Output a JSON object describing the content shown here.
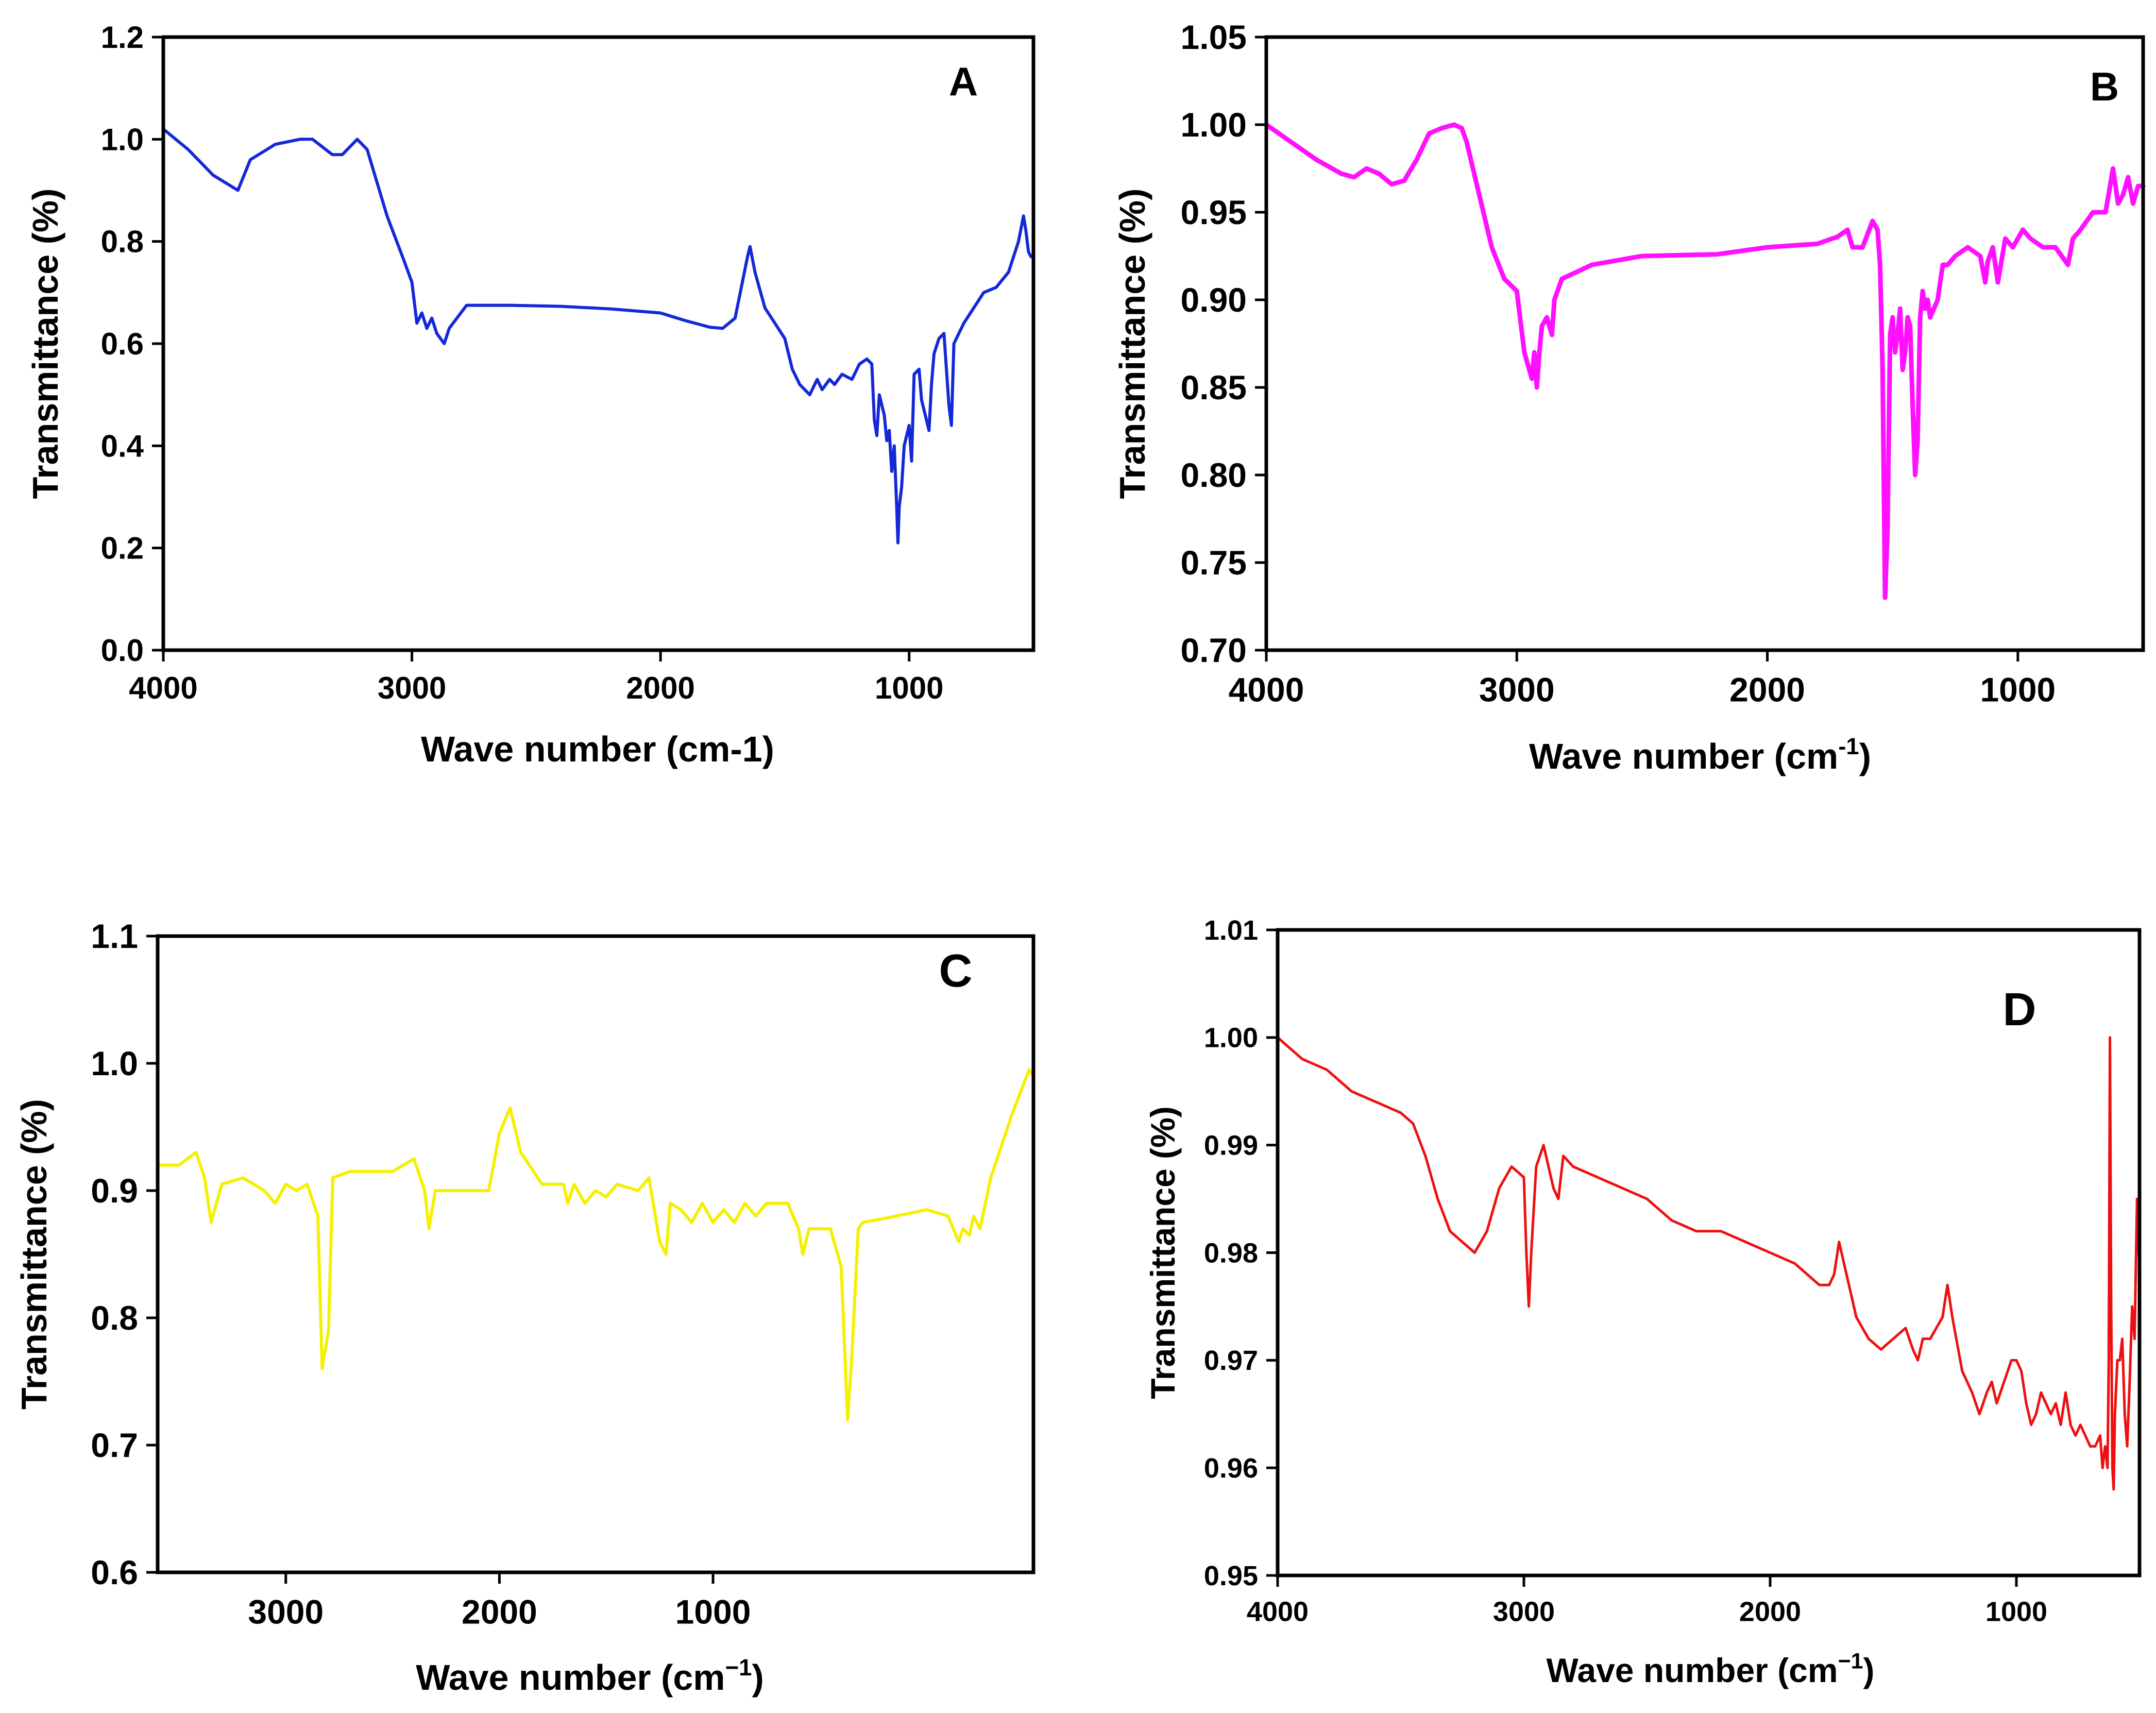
{
  "figure": {
    "panel_count": 4
  },
  "chart_data": [
    {
      "id": "A",
      "type": "line",
      "panel_label": "A",
      "xlabel": "Wave number (cm-1)",
      "ylabel": "Transmittance (%)",
      "xlim": [
        4000,
        500
      ],
      "ylim": [
        0.0,
        1.2
      ],
      "xticks": [
        4000,
        3000,
        2000,
        1000
      ],
      "yticks": [
        0.0,
        0.2,
        0.4,
        0.6,
        0.8,
        1.0,
        1.2
      ],
      "ytick_labels": [
        "0.0",
        "0.2",
        "0.4",
        "0.6",
        "0.8",
        "1.0",
        "1.2"
      ],
      "color": "#1428d8",
      "series": [
        {
          "name": "A",
          "x": [
            4000,
            3900,
            3800,
            3700,
            3650,
            3550,
            3450,
            3400,
            3320,
            3280,
            3220,
            3180,
            3100,
            3030,
            3000,
            2980,
            2960,
            2940,
            2920,
            2900,
            2870,
            2850,
            2780,
            2600,
            2400,
            2200,
            2000,
            1900,
            1800,
            1750,
            1700,
            1650,
            1640,
            1620,
            1580,
            1540,
            1500,
            1470,
            1440,
            1400,
            1370,
            1350,
            1320,
            1300,
            1270,
            1230,
            1200,
            1170,
            1150,
            1140,
            1130,
            1120,
            1100,
            1090,
            1080,
            1070,
            1060,
            1050,
            1045,
            1040,
            1030,
            1020,
            1000,
            990,
            980,
            960,
            950,
            930,
            920,
            910,
            900,
            880,
            860,
            840,
            830,
            820,
            800,
            780,
            700,
            650,
            600,
            560,
            540,
            530,
            520,
            510
          ],
          "y": [
            1.02,
            0.98,
            0.93,
            0.9,
            0.96,
            0.99,
            1.0,
            1.0,
            0.97,
            0.97,
            1.0,
            0.98,
            0.85,
            0.76,
            0.72,
            0.64,
            0.66,
            0.63,
            0.65,
            0.62,
            0.6,
            0.63,
            0.675,
            0.675,
            0.673,
            0.668,
            0.66,
            0.645,
            0.632,
            0.63,
            0.65,
            0.77,
            0.79,
            0.74,
            0.67,
            0.64,
            0.61,
            0.55,
            0.52,
            0.5,
            0.53,
            0.51,
            0.53,
            0.52,
            0.54,
            0.53,
            0.56,
            0.57,
            0.56,
            0.45,
            0.42,
            0.5,
            0.46,
            0.41,
            0.43,
            0.35,
            0.4,
            0.28,
            0.21,
            0.28,
            0.32,
            0.4,
            0.44,
            0.37,
            0.54,
            0.55,
            0.49,
            0.45,
            0.43,
            0.52,
            0.58,
            0.61,
            0.62,
            0.48,
            0.44,
            0.6,
            0.62,
            0.64,
            0.7,
            0.71,
            0.74,
            0.8,
            0.85,
            0.82,
            0.78,
            0.77
          ]
        }
      ]
    },
    {
      "id": "B",
      "type": "line",
      "panel_label": "B",
      "xlabel": "Wave number (cm",
      "xlabel_sup": "-1",
      "xlabel_close": ")",
      "ylabel": "Transmittance (%)",
      "xlim": [
        4000,
        500
      ],
      "ylim": [
        0.7,
        1.05
      ],
      "xticks": [
        4000,
        3000,
        2000,
        1000
      ],
      "yticks": [
        0.7,
        0.75,
        0.8,
        0.85,
        0.9,
        0.95,
        1.0,
        1.05
      ],
      "ytick_labels": [
        "0.70",
        "0.75",
        "0.80",
        "0.85",
        "0.90",
        "0.95",
        "1.00",
        "1.05"
      ],
      "color": "#ff10ff",
      "series": [
        {
          "name": "B",
          "x": [
            4000,
            3900,
            3800,
            3700,
            3650,
            3600,
            3550,
            3500,
            3450,
            3400,
            3350,
            3300,
            3250,
            3220,
            3200,
            3150,
            3100,
            3050,
            3000,
            2970,
            2950,
            2940,
            2930,
            2920,
            2910,
            2900,
            2880,
            2860,
            2850,
            2820,
            2700,
            2500,
            2200,
            2000,
            1800,
            1720,
            1680,
            1660,
            1620,
            1580,
            1560,
            1550,
            1540,
            1530,
            1520,
            1510,
            1500,
            1490,
            1480,
            1470,
            1460,
            1450,
            1440,
            1430,
            1420,
            1410,
            1400,
            1390,
            1380,
            1370,
            1360,
            1350,
            1320,
            1300,
            1280,
            1250,
            1200,
            1150,
            1130,
            1120,
            1100,
            1080,
            1050,
            1020,
            1000,
            980,
            950,
            900,
            850,
            800,
            780,
            750,
            700,
            650,
            620,
            600,
            580,
            560,
            540,
            520,
            500
          ],
          "y": [
            1.0,
            0.99,
            0.98,
            0.972,
            0.97,
            0.975,
            0.972,
            0.966,
            0.968,
            0.98,
            0.995,
            0.998,
            1.0,
            0.998,
            0.99,
            0.96,
            0.93,
            0.912,
            0.905,
            0.87,
            0.86,
            0.855,
            0.87,
            0.85,
            0.87,
            0.885,
            0.89,
            0.88,
            0.9,
            0.912,
            0.92,
            0.925,
            0.926,
            0.93,
            0.932,
            0.936,
            0.94,
            0.93,
            0.93,
            0.945,
            0.94,
            0.92,
            0.86,
            0.73,
            0.77,
            0.88,
            0.89,
            0.87,
            0.88,
            0.895,
            0.86,
            0.87,
            0.89,
            0.885,
            0.84,
            0.8,
            0.82,
            0.89,
            0.905,
            0.895,
            0.9,
            0.89,
            0.9,
            0.92,
            0.92,
            0.925,
            0.93,
            0.925,
            0.91,
            0.922,
            0.93,
            0.91,
            0.935,
            0.93,
            0.935,
            0.94,
            0.935,
            0.93,
            0.93,
            0.92,
            0.935,
            0.94,
            0.95,
            0.95,
            0.975,
            0.955,
            0.96,
            0.97,
            0.955,
            0.965,
            0.965
          ]
        }
      ]
    },
    {
      "id": "C",
      "type": "line",
      "panel_label": "C",
      "xlabel": "Wave number (cm",
      "xlabel_sup": "−1",
      "xlabel_close": ")",
      "ylabel": "Transmittance (%)",
      "xlim": [
        3600,
        -500
      ],
      "ylim": [
        0.6,
        1.1
      ],
      "xticks": [
        3000,
        2000,
        1000
      ],
      "yticks": [
        0.6,
        0.7,
        0.8,
        0.9,
        1.0,
        1.1
      ],
      "ytick_labels": [
        "0.6",
        "0.7",
        "0.8",
        "0.9",
        "1.0",
        "1.1"
      ],
      "color": "#f5f000",
      "series": [
        {
          "name": "C",
          "x": [
            3600,
            3500,
            3420,
            3380,
            3350,
            3300,
            3200,
            3100,
            3050,
            3000,
            2950,
            2900,
            2850,
            2830,
            2800,
            2780,
            2700,
            2500,
            2400,
            2350,
            2330,
            2300,
            2200,
            2050,
            2000,
            1950,
            1900,
            1800,
            1700,
            1680,
            1650,
            1600,
            1550,
            1500,
            1450,
            1350,
            1300,
            1250,
            1220,
            1200,
            1150,
            1100,
            1050,
            1000,
            950,
            900,
            850,
            800,
            750,
            700,
            650,
            600,
            580,
            550,
            450,
            400,
            370,
            350,
            320,
            300,
            200,
            0,
            -100,
            -150,
            -170,
            -200,
            -220,
            -250,
            -300,
            -400,
            -480,
            -500
          ],
          "y": [
            0.92,
            0.92,
            0.93,
            0.91,
            0.875,
            0.905,
            0.91,
            0.9,
            0.89,
            0.905,
            0.9,
            0.905,
            0.88,
            0.76,
            0.79,
            0.91,
            0.915,
            0.915,
            0.925,
            0.9,
            0.87,
            0.9,
            0.9,
            0.9,
            0.945,
            0.965,
            0.93,
            0.905,
            0.905,
            0.89,
            0.905,
            0.89,
            0.9,
            0.895,
            0.905,
            0.9,
            0.91,
            0.86,
            0.85,
            0.89,
            0.885,
            0.875,
            0.89,
            0.875,
            0.885,
            0.875,
            0.89,
            0.88,
            0.89,
            0.89,
            0.89,
            0.87,
            0.85,
            0.87,
            0.87,
            0.84,
            0.72,
            0.77,
            0.87,
            0.875,
            0.878,
            0.885,
            0.88,
            0.86,
            0.87,
            0.865,
            0.88,
            0.87,
            0.91,
            0.96,
            0.995,
            0.99
          ]
        }
      ]
    },
    {
      "id": "D",
      "type": "line",
      "panel_label": "D",
      "xlabel": "Wave number  (cm",
      "xlabel_sup": "−1",
      "xlabel_close": ")",
      "ylabel": "Transmittance (%)",
      "xlim": [
        4000,
        500
      ],
      "ylim": [
        0.95,
        1.01
      ],
      "xticks": [
        4000,
        3000,
        2000,
        1000
      ],
      "yticks": [
        0.95,
        0.96,
        0.97,
        0.98,
        0.99,
        1.0,
        1.01
      ],
      "ytick_labels": [
        "0.95",
        "0.96",
        "0.97",
        "0.98",
        "0.99",
        "1.00",
        "1.01"
      ],
      "color": "#ee1010",
      "series": [
        {
          "name": "D",
          "x": [
            4000,
            3900,
            3800,
            3700,
            3600,
            3500,
            3450,
            3400,
            3350,
            3300,
            3250,
            3200,
            3150,
            3100,
            3050,
            3000,
            2990,
            2980,
            2970,
            2950,
            2920,
            2900,
            2880,
            2860,
            2840,
            2800,
            2700,
            2600,
            2500,
            2400,
            2300,
            2200,
            2100,
            2000,
            1900,
            1800,
            1760,
            1740,
            1720,
            1700,
            1650,
            1600,
            1550,
            1500,
            1450,
            1420,
            1400,
            1380,
            1350,
            1300,
            1280,
            1260,
            1220,
            1180,
            1150,
            1120,
            1100,
            1080,
            1050,
            1020,
            1000,
            980,
            960,
            940,
            920,
            900,
            880,
            860,
            840,
            820,
            800,
            780,
            760,
            740,
            720,
            700,
            680,
            660,
            650,
            640,
            630,
            625,
            620,
            615,
            610,
            605,
            600,
            590,
            580,
            570,
            560,
            550,
            540,
            530,
            520,
            510,
            500
          ],
          "y": [
            1.0,
            0.998,
            0.997,
            0.995,
            0.994,
            0.993,
            0.992,
            0.989,
            0.985,
            0.982,
            0.981,
            0.98,
            0.982,
            0.986,
            0.988,
            0.987,
            0.98,
            0.975,
            0.98,
            0.988,
            0.99,
            0.988,
            0.986,
            0.985,
            0.989,
            0.988,
            0.987,
            0.986,
            0.985,
            0.983,
            0.982,
            0.982,
            0.981,
            0.98,
            0.979,
            0.977,
            0.977,
            0.978,
            0.981,
            0.979,
            0.974,
            0.972,
            0.971,
            0.972,
            0.973,
            0.971,
            0.97,
            0.972,
            0.972,
            0.974,
            0.977,
            0.974,
            0.969,
            0.967,
            0.965,
            0.967,
            0.968,
            0.966,
            0.968,
            0.97,
            0.97,
            0.969,
            0.966,
            0.964,
            0.965,
            0.967,
            0.966,
            0.965,
            0.966,
            0.964,
            0.967,
            0.964,
            0.963,
            0.964,
            0.963,
            0.962,
            0.962,
            0.963,
            0.96,
            0.962,
            0.96,
            0.97,
            1.0,
            0.975,
            0.96,
            0.958,
            0.965,
            0.97,
            0.97,
            0.972,
            0.965,
            0.962,
            0.968,
            0.975,
            0.972,
            0.985,
            0.978
          ]
        }
      ]
    }
  ]
}
